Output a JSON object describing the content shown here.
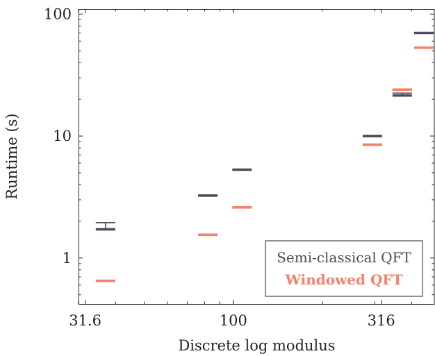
{
  "chart_data": {
    "type": "scatter",
    "title": "",
    "xlabel": "Discrete log modulus",
    "ylabel": "Runtime (s)",
    "x_scale": "log",
    "y_scale": "log",
    "xlim": [
      30,
      480
    ],
    "ylim": [
      0.42,
      110
    ],
    "x_ticks": [
      31.6,
      100,
      316
    ],
    "x_tick_labels": [
      "31.6",
      "100",
      "316"
    ],
    "y_ticks": [
      1,
      10,
      100
    ],
    "y_tick_labels": [
      "1",
      "10",
      "100"
    ],
    "grid": false,
    "legend_position": "bottom-right",
    "series": [
      {
        "name": "Semi-classical QFT",
        "color": "#4a4a5a",
        "points": [
          {
            "x": 37,
            "y": 1.72,
            "y_high": 1.95
          },
          {
            "x": 82,
            "y": 3.25
          },
          {
            "x": 107,
            "y": 5.3
          },
          {
            "x": 295,
            "y": 10.0
          },
          {
            "x": 372,
            "y": 21.5,
            "y_high": 22.5
          },
          {
            "x": 440,
            "y": 70
          }
        ]
      },
      {
        "name": "Windowed QFT",
        "color": "#f4826c",
        "points": [
          {
            "x": 37,
            "y": 0.65
          },
          {
            "x": 82,
            "y": 1.55
          },
          {
            "x": 107,
            "y": 2.6
          },
          {
            "x": 295,
            "y": 8.5
          },
          {
            "x": 372,
            "y": 24
          },
          {
            "x": 440,
            "y": 53
          }
        ]
      }
    ]
  }
}
